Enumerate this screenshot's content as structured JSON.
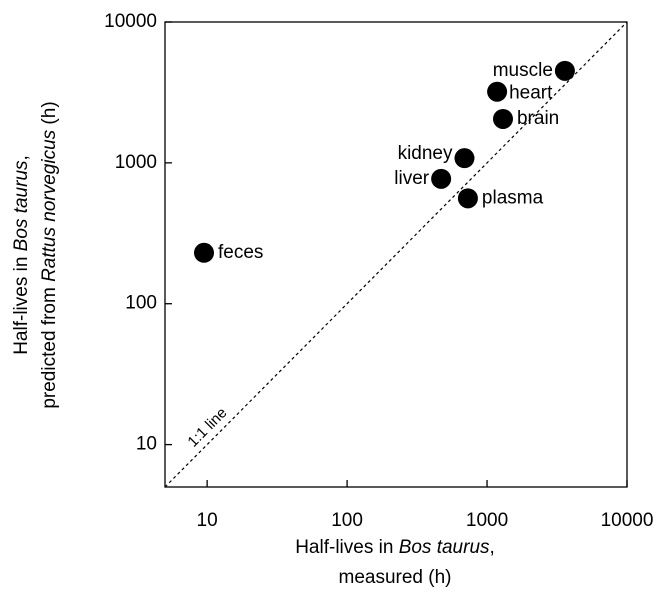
{
  "chart_data": {
    "type": "scatter",
    "x_label": {
      "line1": [
        "Half-lives in ",
        "Bos taurus",
        ","
      ],
      "line2": "measured  (h)"
    },
    "y_label": {
      "line1": [
        "Half-lives in ",
        "Bos taurus",
        ","
      ],
      "line2": [
        "predicted from ",
        "Rattus norvegicus",
        " (h)"
      ]
    },
    "annotation": "1:1 line",
    "labels": [
      "feces",
      "liver",
      "kidney",
      "plasma",
      "heart",
      "brain",
      "muscle"
    ],
    "x": [
      9.5,
      470,
      690,
      730,
      1180,
      1300,
      3600
    ],
    "values": [
      230,
      770,
      1080,
      560,
      3200,
      2050,
      4500
    ],
    "color": "#000000",
    "xscale": "log",
    "yscale": "log",
    "xlim": [
      5,
      10000
    ],
    "ylim": [
      5,
      10000
    ],
    "xticks": [
      10,
      100,
      1000,
      10000
    ],
    "yticks": [
      10,
      100,
      1000,
      10000
    ],
    "grid": false
  }
}
